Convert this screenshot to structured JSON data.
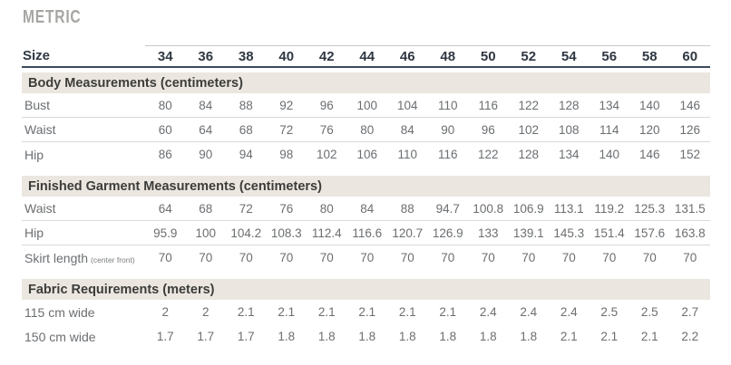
{
  "title": "METRIC",
  "colors": {
    "header_underline": "#3d4a5b",
    "header_topline": "#c9c9c9",
    "section_bar_bg": "#ebe7e0",
    "title_gray": "#a7a6a3",
    "body_text_gray": "#6b6e71",
    "header_text_dark": "#2f3742",
    "row_separator": "#d9d9d9"
  },
  "table": {
    "size_label": "Size",
    "sizes": [
      "34",
      "36",
      "38",
      "40",
      "42",
      "44",
      "46",
      "48",
      "50",
      "52",
      "54",
      "56",
      "58",
      "60"
    ],
    "sections": [
      {
        "heading": "Body Measurements (centimeters)",
        "row_separators": true,
        "rows": [
          {
            "label": "Bust",
            "values": [
              "80",
              "84",
              "88",
              "92",
              "96",
              "100",
              "104",
              "110",
              "116",
              "122",
              "128",
              "134",
              "140",
              "146"
            ]
          },
          {
            "label": "Waist",
            "values": [
              "60",
              "64",
              "68",
              "72",
              "76",
              "80",
              "84",
              "90",
              "96",
              "102",
              "108",
              "114",
              "120",
              "126"
            ]
          },
          {
            "label": "Hip",
            "values": [
              "86",
              "90",
              "94",
              "98",
              "102",
              "106",
              "110",
              "116",
              "122",
              "128",
              "134",
              "140",
              "146",
              "152"
            ]
          }
        ]
      },
      {
        "heading": "Finished Garment Measurements (centimeters)",
        "row_separators": true,
        "rows": [
          {
            "label": "Waist",
            "values": [
              "64",
              "68",
              "72",
              "76",
              "80",
              "84",
              "88",
              "94.7",
              "100.8",
              "106.9",
              "113.1",
              "119.2",
              "125.3",
              "131.5"
            ]
          },
          {
            "label": "Hip",
            "values": [
              "95.9",
              "100",
              "104.2",
              "108.3",
              "112.4",
              "116.6",
              "120.7",
              "126.9",
              "133",
              "139.1",
              "145.3",
              "151.4",
              "157.6",
              "163.8"
            ]
          },
          {
            "label": "Skirt length",
            "label_note": "(center front)",
            "values": [
              "70",
              "70",
              "70",
              "70",
              "70",
              "70",
              "70",
              "70",
              "70",
              "70",
              "70",
              "70",
              "70",
              "70"
            ]
          }
        ]
      },
      {
        "heading": "Fabric Requirements (meters)",
        "row_separators": false,
        "rows": [
          {
            "label": "115 cm wide",
            "values": [
              "2",
              "2",
              "2.1",
              "2.1",
              "2.1",
              "2.1",
              "2.1",
              "2.1",
              "2.4",
              "2.4",
              "2.4",
              "2.5",
              "2.5",
              "2.7"
            ]
          },
          {
            "label": "150 cm wide",
            "values": [
              "1.7",
              "1.7",
              "1.7",
              "1.8",
              "1.8",
              "1.8",
              "1.8",
              "1.8",
              "1.8",
              "1.8",
              "2.1",
              "2.1",
              "2.1",
              "2.2"
            ]
          }
        ]
      }
    ]
  }
}
